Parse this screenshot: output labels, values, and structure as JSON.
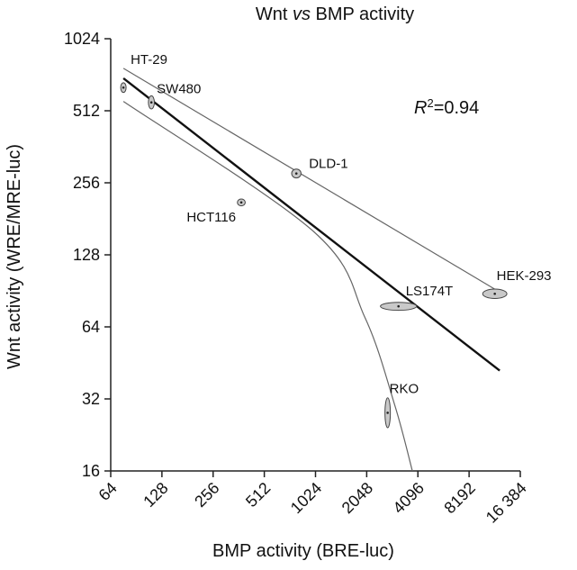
{
  "chart_data": {
    "type": "scatter",
    "title": "Wnt vs BMP activity",
    "title_parts": {
      "prefix": "Wnt ",
      "italic": "vs",
      "suffix": " BMP activity"
    },
    "xlabel": "BMP activity (BRE-luc)",
    "ylabel": "Wnt activity (WRE/MRE-luc)",
    "xscale": "log2",
    "yscale": "log2",
    "xlim": [
      64,
      16384
    ],
    "ylim": [
      16,
      1024
    ],
    "xticks": [
      64,
      128,
      256,
      512,
      1024,
      2048,
      4096,
      8192,
      16384
    ],
    "xtick_labels": [
      "64",
      "128",
      "256",
      "512",
      "1024",
      "2048",
      "4096",
      "8192",
      "16 384"
    ],
    "yticks": [
      16,
      32,
      64,
      128,
      256,
      512,
      1024
    ],
    "ytick_labels": [
      "16",
      "32",
      "64",
      "128",
      "256",
      "512",
      "1024"
    ],
    "grid": false,
    "annotation": {
      "symbol": "R",
      "superscript": "2",
      "value": "=0.94"
    },
    "points": [
      {
        "label": "HT-29",
        "x": 76,
        "y": 640,
        "x_err": [
          74,
          79
        ],
        "y_err": [
          610,
          670
        ]
      },
      {
        "label": "SW480",
        "x": 111,
        "y": 555,
        "x_err": [
          107,
          116
        ],
        "y_err": [
          520,
          590
        ]
      },
      {
        "label": "DLD-1",
        "x": 790,
        "y": 280,
        "x_err": [
          740,
          840
        ],
        "y_err": [
          268,
          292
        ]
      },
      {
        "label": "HCT116",
        "x": 375,
        "y": 212,
        "x_err": [
          355,
          395
        ],
        "y_err": [
          205,
          219
        ]
      },
      {
        "label": "LS174T",
        "x": 3150,
        "y": 78,
        "x_err": [
          2450,
          4000
        ],
        "y_err": [
          75,
          81
        ]
      },
      {
        "label": "HEK-293",
        "x": 11600,
        "y": 88,
        "x_err": [
          9800,
          13600
        ],
        "y_err": [
          84,
          92
        ]
      },
      {
        "label": "RKO",
        "x": 2720,
        "y": 28,
        "x_err": [
          2630,
          2820
        ],
        "y_err": [
          24,
          32
        ]
      }
    ],
    "fit_line": {
      "x": [
        76,
        12400
      ],
      "y": [
        700,
        42
      ]
    },
    "upper_curve": {
      "x": [
        76,
        11600
      ],
      "y": [
        770,
        92
      ]
    },
    "lower_curve": {
      "x": [
        76,
        1000,
        2000,
        3000,
        3800
      ],
      "y": [
        560,
        160,
        70,
        30,
        16
      ]
    }
  }
}
